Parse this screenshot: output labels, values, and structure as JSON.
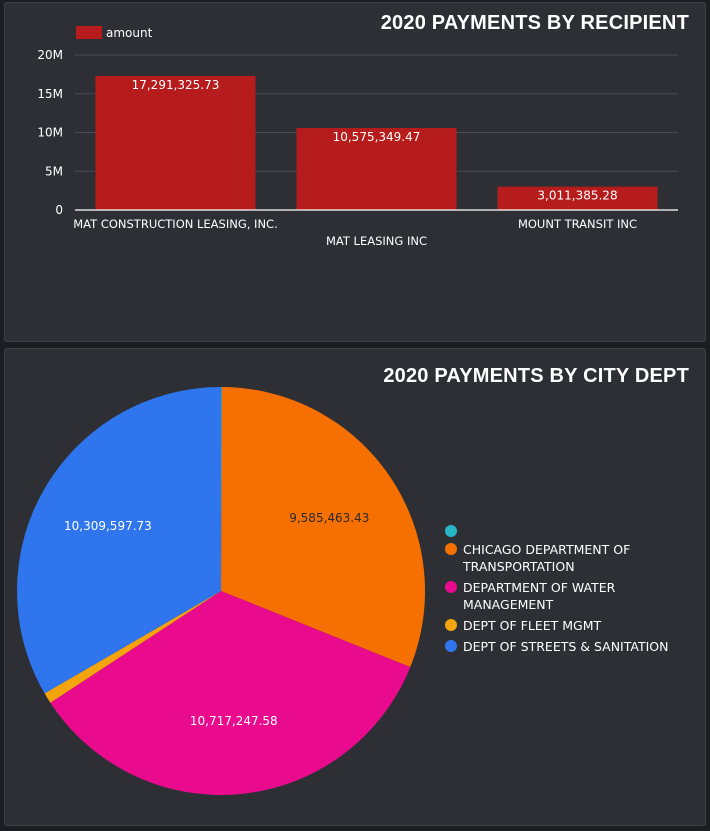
{
  "chart_data": [
    {
      "type": "bar",
      "title": "2020 PAYMENTS BY RECIPIENT",
      "legend": {
        "label": "amount",
        "position": "top-left"
      },
      "categories": [
        "MAT CONSTRUCTION LEASING, INC.",
        "MAT LEASING INC",
        "MOUNT TRANSIT INC"
      ],
      "values": [
        17291325.73,
        10575349.47,
        3011385.28
      ],
      "value_labels": [
        "17,291,325.73",
        "10,575,349.47",
        "3,011,385.28"
      ],
      "ylim": [
        0,
        20000000
      ],
      "yticks": [
        0,
        5000000,
        10000000,
        15000000,
        20000000
      ],
      "ytick_labels": [
        "0",
        "5M",
        "10M",
        "15M",
        "20M"
      ],
      "grid": true,
      "color": "#b71c1c"
    },
    {
      "type": "pie",
      "title": "2020 PAYMENTS BY CITY DEPT",
      "legend_position": "right",
      "slices": [
        {
          "label": "",
          "value": 20000,
          "value_label": "",
          "color": "#26b6c6"
        },
        {
          "label": "CHICAGO DEPARTMENT OF TRANSPORTATION",
          "value": 9585463.43,
          "value_label": "9,585,463.43",
          "color": "#f57000"
        },
        {
          "label": "DEPARTMENT OF WATER MANAGEMENT",
          "value": 10717247.58,
          "value_label": "10,717,247.58",
          "color": "#ea0a8e"
        },
        {
          "label": "DEPT OF FLEET MGMT",
          "value": 265000,
          "value_label": "",
          "color": "#f4a40c"
        },
        {
          "label": "DEPT OF STREETS & SANITATION",
          "value": 10309597.73,
          "value_label": "10,309,597.73",
          "color": "#2f76ee"
        }
      ]
    }
  ]
}
